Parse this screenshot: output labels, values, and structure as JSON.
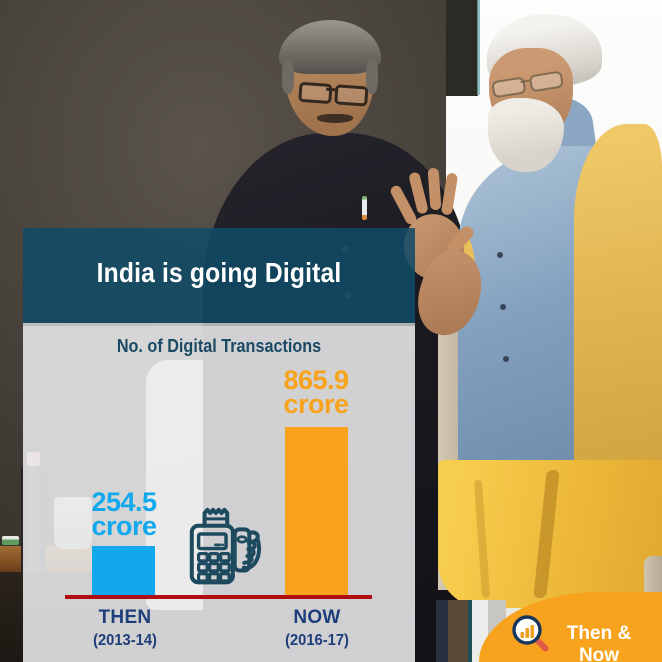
{
  "card": {
    "title": "India is going Digital",
    "subtitle": "No. of Digital Transactions",
    "bars": [
      {
        "label": "THEN",
        "period": "(2013-14)",
        "value": "254.5",
        "unit": "crore"
      },
      {
        "label": "NOW",
        "period": "(2016-17)",
        "value": "865.9",
        "unit": "crore"
      }
    ]
  },
  "badge": {
    "label": "Then & Now"
  },
  "colors": {
    "accent_blue": "#12a8ee",
    "accent_orange": "#f9a21b",
    "baseline_red": "#b10e12",
    "label_navy": "#1e3d7b",
    "subtitle_teal": "#1b4a64",
    "badge_orange": "#f8a31d",
    "icon_stroke": "#1d4a5e"
  },
  "chart_data": {
    "type": "bar",
    "title": "India is going Digital",
    "subtitle": "No. of Digital Transactions",
    "categories": [
      "THEN (2013-14)",
      "NOW (2016-17)"
    ],
    "values": [
      254.5,
      865.9
    ],
    "unit": "crore",
    "data_labels": [
      "254.5 crore",
      "865.9 crore"
    ],
    "bar_colors": [
      "#12a8ee",
      "#f9a21b"
    ],
    "baseline_color": "#b10e12",
    "legend": "none",
    "grid": false,
    "ylim": [
      0,
      900
    ]
  }
}
